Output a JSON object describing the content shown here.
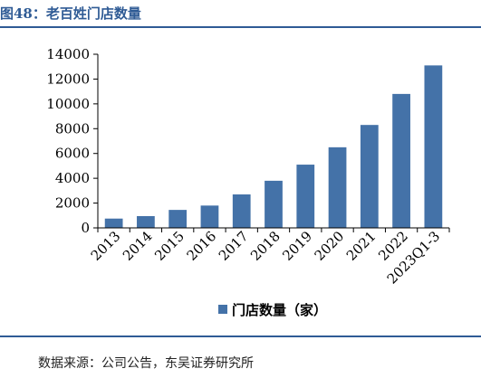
{
  "figure": {
    "title": "图48：老百姓门店数量",
    "source": "数据来源：公司公告，东吴证券研究所"
  },
  "colors": {
    "bar": "#4472A8",
    "title": "#2F5B95",
    "rule": "#2F5B95",
    "axis": "#000000"
  },
  "chart_data": {
    "type": "bar",
    "title": "",
    "xlabel": "",
    "ylabel": "",
    "categories": [
      "2013",
      "2014",
      "2015",
      "2016",
      "2017",
      "2018",
      "2019",
      "2020",
      "2021",
      "2022",
      "2023Q1-3"
    ],
    "series": [
      {
        "name": "门店数量（家）",
        "values": [
          750,
          950,
          1450,
          1800,
          2700,
          3800,
          5100,
          6500,
          8300,
          10800,
          13100
        ]
      }
    ],
    "ylim": [
      0,
      14000
    ],
    "yticks": [
      "0",
      "2000",
      "4000",
      "6000",
      "8000",
      "10000",
      "12000",
      "14000"
    ],
    "grid": false,
    "legend_position": "bottom"
  }
}
